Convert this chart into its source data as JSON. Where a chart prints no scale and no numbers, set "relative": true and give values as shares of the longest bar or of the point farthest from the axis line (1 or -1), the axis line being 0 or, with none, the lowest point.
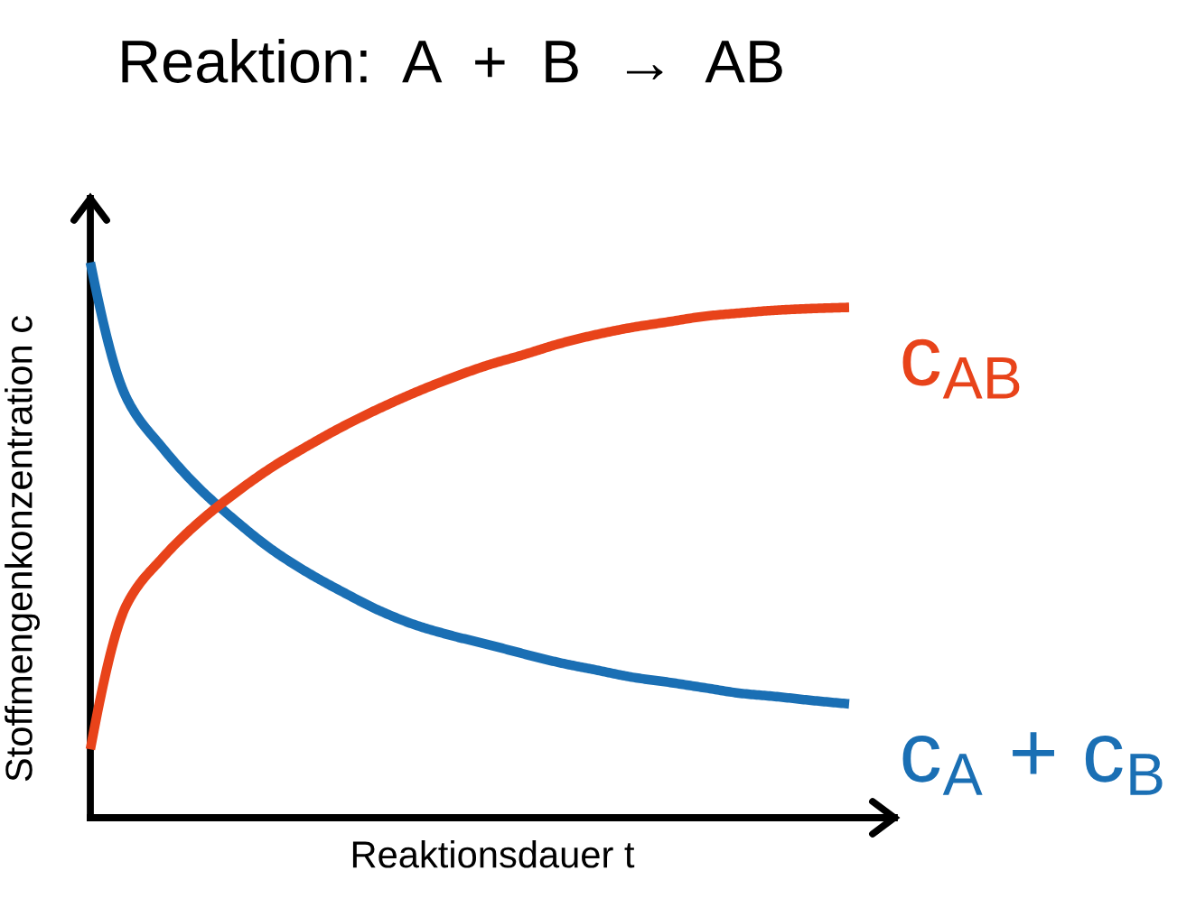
{
  "chart_data": {
    "type": "line",
    "title": "Reaktion:  A  +  B  →  AB",
    "xlabel": "Reaktionsdauer t",
    "ylabel": "Stoffmengenkonzentration c",
    "categories": [
      null,
      null,
      null,
      null,
      null,
      null,
      null,
      null,
      null,
      null,
      null,
      null,
      null,
      null,
      null,
      null,
      null,
      null,
      null,
      null,
      null,
      null
    ],
    "relative": true,
    "tick_labels": false,
    "line_style": "solid",
    "series": [
      {
        "name": "c$_{A}$ + c$_{B}$",
        "color": "#1a6fb4",
        "values": [
          1.0,
          0.756,
          0.666,
          0.594,
          0.536,
          0.484,
          0.442,
          0.406,
          0.373,
          0.347,
          0.328,
          0.312,
          0.295,
          0.279,
          0.266,
          0.253,
          0.244,
          0.234,
          0.224,
          0.218,
          0.211,
          0.205
        ]
      },
      {
        "name": "c$_{AB}$",
        "color": "#e8431a",
        "values": [
          0.123,
          0.383,
          0.468,
          0.532,
          0.584,
          0.63,
          0.669,
          0.705,
          0.737,
          0.766,
          0.792,
          0.815,
          0.834,
          0.854,
          0.87,
          0.883,
          0.893,
          0.903,
          0.909,
          0.914,
          0.917,
          0.919
        ]
      }
    ]
  }
}
